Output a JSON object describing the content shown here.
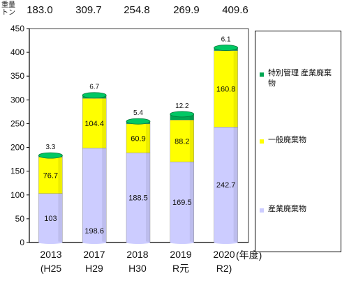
{
  "unit_label": "重量\nトン",
  "totals": [
    "183.0",
    "309.7",
    "254.8",
    "269.9",
    "409.6"
  ],
  "x_unit": "(年度)",
  "legend": [
    {
      "label": "特別管理 産業廃棄物",
      "color": "#00a651"
    },
    {
      "label": "一般廃棄物",
      "color": "#ffff00"
    },
    {
      "label": "産業廃棄物",
      "color": "#ccccff"
    }
  ],
  "chart_data": {
    "type": "bar",
    "stacked": true,
    "categories": [
      "2013",
      "2017",
      "2018",
      "2019",
      "2020"
    ],
    "category_sub": [
      "(H25",
      "H29",
      "H30",
      "R元",
      "R2)"
    ],
    "series": [
      {
        "name": "産業廃棄物",
        "values": [
          103,
          198.6,
          188.5,
          169.5,
          242.7
        ],
        "labels": [
          "103",
          "198.6",
          "188.5",
          "169.5",
          "242.7"
        ]
      },
      {
        "name": "一般廃棄物",
        "values": [
          76.7,
          104.4,
          60.9,
          88.2,
          160.8
        ],
        "labels": [
          "76.7",
          "104.4",
          "60.9",
          "88.2",
          "160.8"
        ]
      },
      {
        "name": "特別管理 産業廃棄物",
        "values": [
          3.3,
          6.7,
          5.4,
          12.2,
          6.1
        ],
        "labels": [
          "3.3",
          "6.7",
          "5.4",
          "12.2",
          "6.1"
        ]
      }
    ],
    "ylim": [
      0,
      450
    ],
    "yticks": [
      0,
      50,
      100,
      150,
      200,
      250,
      300,
      350,
      400,
      450
    ],
    "xlabel": "(年度)",
    "grid": false,
    "legend_position": "right"
  }
}
